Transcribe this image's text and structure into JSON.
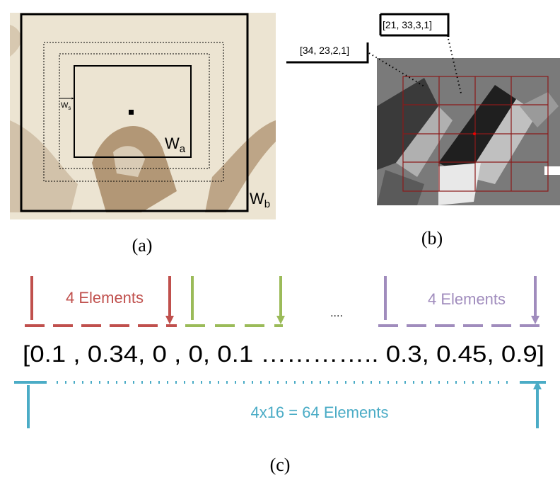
{
  "panel_a": {
    "window_small": {
      "base": "W",
      "sub": "s"
    },
    "window_a": {
      "base": "W",
      "sub": "a"
    },
    "window_b": {
      "base": "W",
      "sub": "b"
    },
    "caption": "(a)"
  },
  "panel_b": {
    "callouts": [
      "[34, 23,2,1]",
      "[21, 33,3,1]"
    ],
    "caption": "(b)"
  },
  "panel_c": {
    "group_left": "4 Elements",
    "ellipsis": "....",
    "group_right": "4 Elements",
    "vector": "[0.1 , 0.34, 0 , 0, 0.1 ………….. 0.3, 0.45, 0.9]",
    "total": "4x16 = 64 Elements",
    "caption": "(c)"
  }
}
